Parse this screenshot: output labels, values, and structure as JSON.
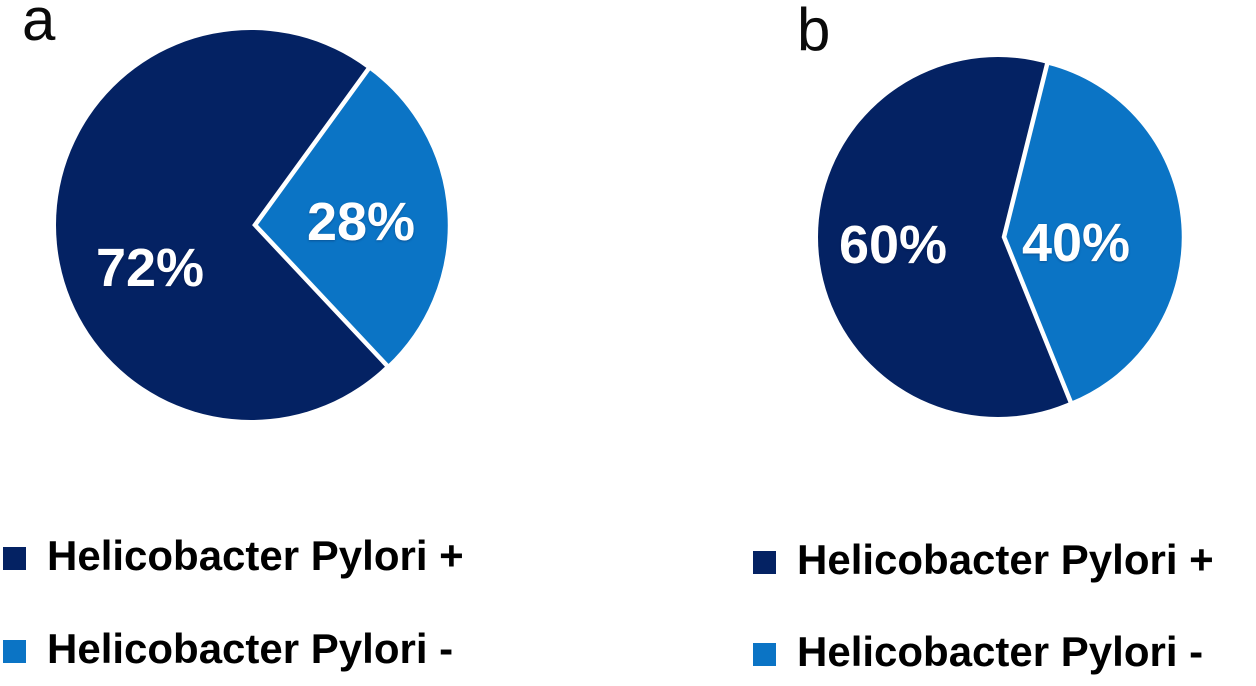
{
  "panels": {
    "a": {
      "label": "a"
    },
    "b": {
      "label": "b"
    }
  },
  "colors": {
    "hp_positive": "#042263",
    "hp_negative": "#0B74C5",
    "slice_gap": "#FFFFFF",
    "label_text": "#FFFFFF",
    "legend_text": "#000000"
  },
  "chart_data": [
    {
      "type": "pie",
      "panel_label": "a",
      "slices": [
        {
          "label": "Helicobacter Pylori +",
          "value": 72,
          "data_label": "72%",
          "color": "#042263"
        },
        {
          "label": "Helicobacter Pylori -",
          "value": 28,
          "data_label": "28%",
          "color": "#0B74C5"
        }
      ],
      "rotation_deg_clockwise_from_top": 136.8,
      "data_labels": "percent-inside",
      "legend_position": "below-left"
    },
    {
      "type": "pie",
      "panel_label": "b",
      "slices": [
        {
          "label": "Helicobacter Pylori +",
          "value": 60,
          "data_label": "60%",
          "color": "#042263"
        },
        {
          "label": "Helicobacter Pylori -",
          "value": 40,
          "data_label": "40%",
          "color": "#0B74C5"
        }
      ],
      "rotation_deg_clockwise_from_top": 158,
      "data_labels": "percent-inside",
      "legend_position": "below-left"
    }
  ],
  "legends": {
    "a": [
      {
        "label": "Helicobacter Pylori +",
        "color": "#042263"
      },
      {
        "label": "Helicobacter Pylori -",
        "color": "#0B74C5"
      }
    ],
    "b": [
      {
        "label": "Helicobacter Pylori +",
        "color": "#042263"
      },
      {
        "label": "Helicobacter Pylori -",
        "color": "#0B74C5"
      }
    ]
  }
}
